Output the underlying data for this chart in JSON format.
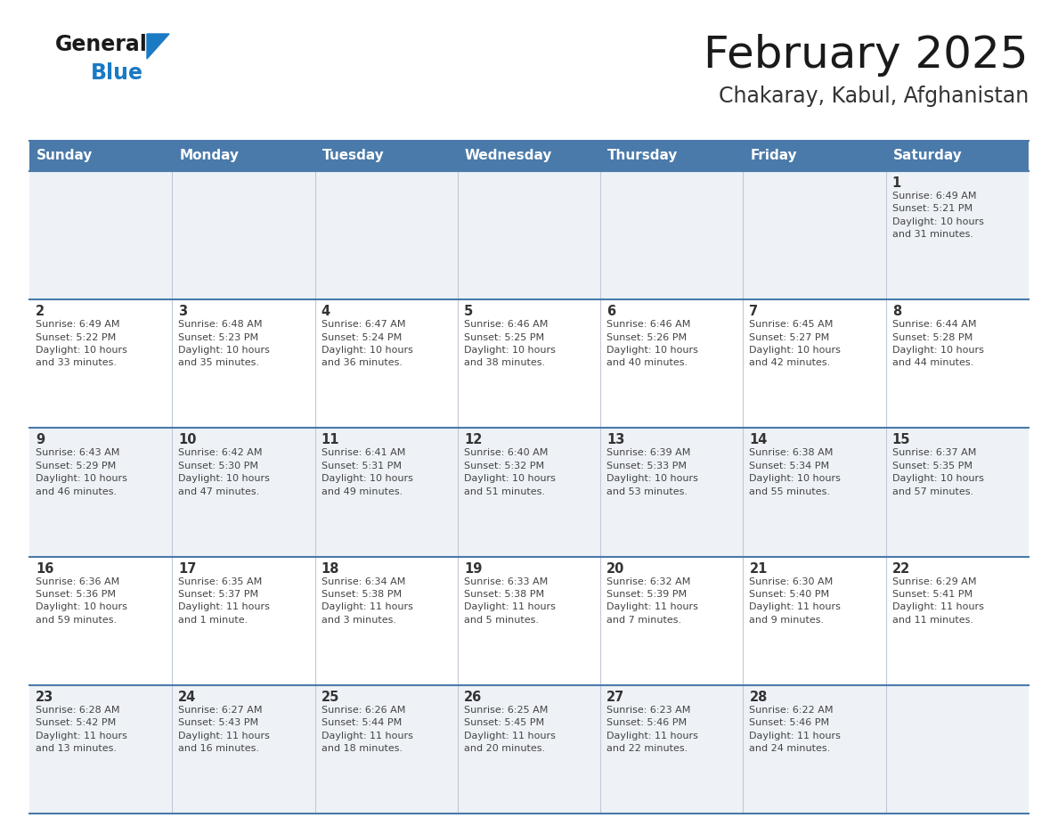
{
  "title": "February 2025",
  "subtitle": "Chakaray, Kabul, Afghanistan",
  "header_color": "#4a7aaa",
  "header_text_color": "#ffffff",
  "cell_bg_week1": "#eef2f7",
  "cell_bg_week2": "#ffffff",
  "cell_bg_week3": "#eef2f7",
  "cell_bg_week4": "#ffffff",
  "cell_bg_week5": "#eef2f7",
  "border_color": "#4a7aaa",
  "grid_line_color": "#c0c8d8",
  "day_headers": [
    "Sunday",
    "Monday",
    "Tuesday",
    "Wednesday",
    "Thursday",
    "Friday",
    "Saturday"
  ],
  "title_color": "#1a1a1a",
  "subtitle_color": "#333333",
  "number_color": "#333333",
  "text_color": "#444444",
  "logo_general_color": "#1a1a1a",
  "logo_blue_color": "#1a7ac4",
  "fig_width": 11.88,
  "fig_height": 9.18,
  "weeks": [
    [
      {
        "day": null,
        "info": null
      },
      {
        "day": null,
        "info": null
      },
      {
        "day": null,
        "info": null
      },
      {
        "day": null,
        "info": null
      },
      {
        "day": null,
        "info": null
      },
      {
        "day": null,
        "info": null
      },
      {
        "day": 1,
        "info": "Sunrise: 6:49 AM\nSunset: 5:21 PM\nDaylight: 10 hours\nand 31 minutes."
      }
    ],
    [
      {
        "day": 2,
        "info": "Sunrise: 6:49 AM\nSunset: 5:22 PM\nDaylight: 10 hours\nand 33 minutes."
      },
      {
        "day": 3,
        "info": "Sunrise: 6:48 AM\nSunset: 5:23 PM\nDaylight: 10 hours\nand 35 minutes."
      },
      {
        "day": 4,
        "info": "Sunrise: 6:47 AM\nSunset: 5:24 PM\nDaylight: 10 hours\nand 36 minutes."
      },
      {
        "day": 5,
        "info": "Sunrise: 6:46 AM\nSunset: 5:25 PM\nDaylight: 10 hours\nand 38 minutes."
      },
      {
        "day": 6,
        "info": "Sunrise: 6:46 AM\nSunset: 5:26 PM\nDaylight: 10 hours\nand 40 minutes."
      },
      {
        "day": 7,
        "info": "Sunrise: 6:45 AM\nSunset: 5:27 PM\nDaylight: 10 hours\nand 42 minutes."
      },
      {
        "day": 8,
        "info": "Sunrise: 6:44 AM\nSunset: 5:28 PM\nDaylight: 10 hours\nand 44 minutes."
      }
    ],
    [
      {
        "day": 9,
        "info": "Sunrise: 6:43 AM\nSunset: 5:29 PM\nDaylight: 10 hours\nand 46 minutes."
      },
      {
        "day": 10,
        "info": "Sunrise: 6:42 AM\nSunset: 5:30 PM\nDaylight: 10 hours\nand 47 minutes."
      },
      {
        "day": 11,
        "info": "Sunrise: 6:41 AM\nSunset: 5:31 PM\nDaylight: 10 hours\nand 49 minutes."
      },
      {
        "day": 12,
        "info": "Sunrise: 6:40 AM\nSunset: 5:32 PM\nDaylight: 10 hours\nand 51 minutes."
      },
      {
        "day": 13,
        "info": "Sunrise: 6:39 AM\nSunset: 5:33 PM\nDaylight: 10 hours\nand 53 minutes."
      },
      {
        "day": 14,
        "info": "Sunrise: 6:38 AM\nSunset: 5:34 PM\nDaylight: 10 hours\nand 55 minutes."
      },
      {
        "day": 15,
        "info": "Sunrise: 6:37 AM\nSunset: 5:35 PM\nDaylight: 10 hours\nand 57 minutes."
      }
    ],
    [
      {
        "day": 16,
        "info": "Sunrise: 6:36 AM\nSunset: 5:36 PM\nDaylight: 10 hours\nand 59 minutes."
      },
      {
        "day": 17,
        "info": "Sunrise: 6:35 AM\nSunset: 5:37 PM\nDaylight: 11 hours\nand 1 minute."
      },
      {
        "day": 18,
        "info": "Sunrise: 6:34 AM\nSunset: 5:38 PM\nDaylight: 11 hours\nand 3 minutes."
      },
      {
        "day": 19,
        "info": "Sunrise: 6:33 AM\nSunset: 5:38 PM\nDaylight: 11 hours\nand 5 minutes."
      },
      {
        "day": 20,
        "info": "Sunrise: 6:32 AM\nSunset: 5:39 PM\nDaylight: 11 hours\nand 7 minutes."
      },
      {
        "day": 21,
        "info": "Sunrise: 6:30 AM\nSunset: 5:40 PM\nDaylight: 11 hours\nand 9 minutes."
      },
      {
        "day": 22,
        "info": "Sunrise: 6:29 AM\nSunset: 5:41 PM\nDaylight: 11 hours\nand 11 minutes."
      }
    ],
    [
      {
        "day": 23,
        "info": "Sunrise: 6:28 AM\nSunset: 5:42 PM\nDaylight: 11 hours\nand 13 minutes."
      },
      {
        "day": 24,
        "info": "Sunrise: 6:27 AM\nSunset: 5:43 PM\nDaylight: 11 hours\nand 16 minutes."
      },
      {
        "day": 25,
        "info": "Sunrise: 6:26 AM\nSunset: 5:44 PM\nDaylight: 11 hours\nand 18 minutes."
      },
      {
        "day": 26,
        "info": "Sunrise: 6:25 AM\nSunset: 5:45 PM\nDaylight: 11 hours\nand 20 minutes."
      },
      {
        "day": 27,
        "info": "Sunrise: 6:23 AM\nSunset: 5:46 PM\nDaylight: 11 hours\nand 22 minutes."
      },
      {
        "day": 28,
        "info": "Sunrise: 6:22 AM\nSunset: 5:46 PM\nDaylight: 11 hours\nand 24 minutes."
      },
      {
        "day": null,
        "info": null
      }
    ]
  ]
}
